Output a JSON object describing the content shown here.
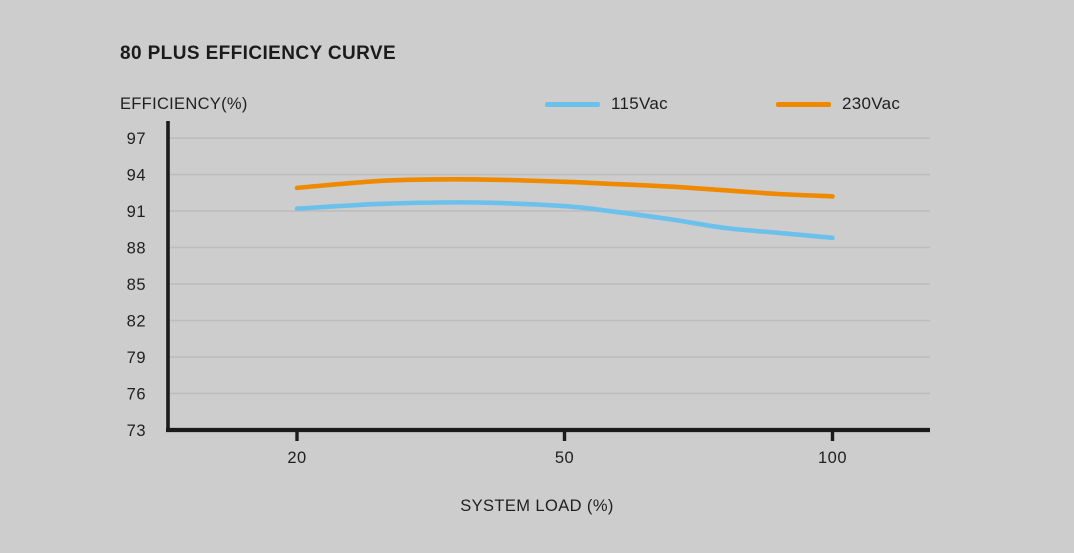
{
  "page": {
    "background_color": "#cdcdcd",
    "title": "80 PLUS EFFICIENCY CURVE"
  },
  "chart_data": {
    "type": "line",
    "title": "80 PLUS EFFICIENCY CURVE",
    "ylabel": "EFFICIENCY(%)",
    "xlabel": "SYSTEM LOAD (%)",
    "x": [
      20,
      30,
      40,
      50,
      60,
      70,
      80,
      90,
      100
    ],
    "xticks": [
      20,
      50,
      100
    ],
    "yticks": [
      97,
      94,
      91,
      88,
      85,
      82,
      79,
      76,
      73
    ],
    "ylim": [
      73,
      97
    ],
    "grid": true,
    "legend_position": "top-right",
    "series": [
      {
        "name": "115Vac",
        "color": "#6bc1eb",
        "values": [
          91.2,
          91.6,
          91.7,
          91.4,
          90.9,
          90.3,
          89.6,
          89.2,
          88.8
        ]
      },
      {
        "name": "230Vac",
        "color": "#ef8a00",
        "values": [
          92.9,
          93.5,
          93.6,
          93.4,
          93.2,
          93.0,
          92.7,
          92.4,
          92.2
        ]
      }
    ],
    "axis_color": "#1b1b1b",
    "gridline_color": "#bcbcbc"
  }
}
